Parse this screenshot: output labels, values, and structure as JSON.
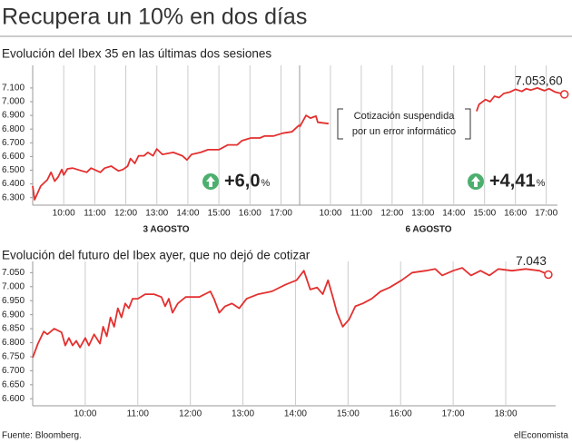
{
  "title": "Recupera un 10% en dos días",
  "source": "Fuente: Bloomberg.",
  "credit": "elEconomista",
  "chart_data": [
    {
      "type": "line",
      "title": "Evolución del Ibex 35 en las últimas dos sesiones",
      "xlabel": "3 AGOSTO",
      "change": "+6,0",
      "change_unit": "%",
      "x": [
        9.0,
        9.06,
        9.26,
        9.47,
        9.59,
        9.71,
        9.82,
        9.94,
        10.0,
        10.12,
        10.29,
        10.59,
        10.74,
        10.88,
        11.18,
        11.32,
        11.53,
        11.76,
        11.91,
        12.06,
        12.15,
        12.29,
        12.41,
        12.59,
        12.71,
        12.88,
        13.0,
        13.18,
        13.53,
        13.82,
        13.97,
        14.12,
        14.41,
        14.65,
        15.0,
        15.29,
        15.59,
        15.74,
        16.03,
        16.32,
        16.47,
        16.76,
        17.06,
        17.35,
        17.59
      ],
      "series": [
        {
          "color": "#e3302f",
          "values": [
            6385,
            6285,
            6385,
            6430,
            6485,
            6420,
            6450,
            6505,
            6465,
            6510,
            6515,
            6495,
            6485,
            6515,
            6485,
            6515,
            6530,
            6495,
            6505,
            6530,
            6585,
            6550,
            6605,
            6605,
            6630,
            6605,
            6655,
            6615,
            6630,
            6605,
            6575,
            6615,
            6630,
            6650,
            6650,
            6685,
            6685,
            6715,
            6735,
            6735,
            6750,
            6750,
            6770,
            6780,
            6830
          ]
        }
      ],
      "xlim": [
        9,
        17.6
      ],
      "ylim": [
        6245,
        7265
      ],
      "xticks": [
        {
          "value": 10,
          "label": "10:00"
        },
        {
          "value": 11,
          "label": "11:00"
        },
        {
          "value": 12,
          "label": "12:00"
        },
        {
          "value": 13,
          "label": "13:00"
        },
        {
          "value": 14,
          "label": "14:00"
        },
        {
          "value": 15,
          "label": "15:00"
        },
        {
          "value": 16,
          "label": "16:00"
        },
        {
          "value": 17,
          "label": "17:00"
        }
      ],
      "yticks": [
        {
          "value": 6300,
          "label": "6.300"
        },
        {
          "value": 6400,
          "label": "6.400"
        },
        {
          "value": 6500,
          "label": "6.500"
        },
        {
          "value": 6600,
          "label": "6.600"
        },
        {
          "value": 6700,
          "label": "6.700"
        },
        {
          "value": 6800,
          "label": "6.800"
        },
        {
          "value": 6900,
          "label": "6.900"
        },
        {
          "value": 7000,
          "label": "7.000"
        },
        {
          "value": 7100,
          "label": "7.100"
        }
      ],
      "grid": true
    },
    {
      "type": "line",
      "xlabel": "6 AGOSTO",
      "change": "+4,41",
      "change_unit": "%",
      "note": [
        "Cotización suspendida",
        "por un error informático"
      ],
      "x": [
        9.0,
        9.21,
        9.35,
        9.53,
        9.59,
        9.94,
        12.0,
        14.74,
        14.82,
        15.03,
        15.18,
        15.32,
        15.47,
        15.62,
        15.82,
        16.0,
        16.21,
        16.35,
        16.5,
        16.71,
        16.94,
        17.09,
        17.29,
        17.59
      ],
      "series": [
        {
          "color": "#e3302f",
          "values": [
            6815,
            6900,
            6880,
            6895,
            6850,
            6840,
            null,
            6930,
            6980,
            7015,
            7000,
            7040,
            7030,
            7060,
            7070,
            7090,
            7075,
            7095,
            7085,
            7100,
            7080,
            7095,
            7070,
            7053.6
          ],
          "value_labels": [
            null,
            null,
            null,
            null,
            null,
            null,
            null,
            null,
            null,
            null,
            null,
            null,
            null,
            null,
            null,
            null,
            null,
            null,
            null,
            null,
            null,
            null,
            null,
            "7.053,60"
          ]
        }
      ],
      "xlim": [
        9,
        17.6
      ],
      "ylim": [
        6245,
        7265
      ],
      "xticks": [
        {
          "value": 10,
          "label": "10:00"
        },
        {
          "value": 11,
          "label": "11:00"
        },
        {
          "value": 12,
          "label": "12:00"
        },
        {
          "value": 13,
          "label": "13:00"
        },
        {
          "value": 14,
          "label": "14:00"
        },
        {
          "value": 15,
          "label": "15:00"
        },
        {
          "value": 16,
          "label": "16:00"
        },
        {
          "value": 17,
          "label": "17:00"
        }
      ],
      "grid": true
    },
    {
      "type": "line",
      "title": "Evolución del futuro del Ibex ayer, que no dejó de cotizar",
      "x": [
        9.0,
        9.1,
        9.21,
        9.28,
        9.41,
        9.55,
        9.62,
        9.69,
        9.76,
        9.83,
        9.9,
        10.0,
        10.07,
        10.17,
        10.28,
        10.34,
        10.41,
        10.48,
        10.55,
        10.62,
        10.69,
        10.76,
        10.83,
        10.9,
        11.0,
        11.14,
        11.31,
        11.45,
        11.52,
        11.59,
        11.66,
        11.76,
        11.91,
        12.17,
        12.38,
        12.45,
        12.55,
        12.66,
        12.79,
        12.93,
        13.07,
        13.29,
        13.55,
        13.81,
        14.02,
        14.16,
        14.28,
        14.41,
        14.52,
        14.62,
        14.72,
        14.79,
        14.9,
        15.02,
        15.14,
        15.28,
        15.45,
        15.62,
        15.79,
        16.02,
        16.22,
        16.48,
        16.66,
        16.79,
        17.0,
        17.17,
        17.34,
        17.52,
        17.69,
        17.86,
        18.12,
        18.38,
        18.64,
        18.81
      ],
      "series": [
        {
          "color": "#e3302f",
          "values": [
            6747,
            6797,
            6840,
            6830,
            6850,
            6837,
            6790,
            6817,
            6790,
            6807,
            6783,
            6817,
            6790,
            6830,
            6797,
            6857,
            6823,
            6890,
            6857,
            6923,
            6890,
            6940,
            6923,
            6957,
            6957,
            6973,
            6973,
            6963,
            6930,
            6957,
            6907,
            6940,
            6963,
            6963,
            6983,
            6957,
            6907,
            6930,
            6940,
            6923,
            6957,
            6973,
            6983,
            7007,
            7023,
            7057,
            6990,
            6997,
            6973,
            7023,
            6957,
            6907,
            6857,
            6883,
            6930,
            6940,
            6957,
            6983,
            6997,
            7023,
            7050,
            7057,
            7063,
            7040,
            7057,
            7067,
            7040,
            7057,
            7040,
            7063,
            7057,
            7063,
            7057,
            7043
          ],
          "value_labels": [
            null,
            null,
            null,
            null,
            null,
            null,
            null,
            null,
            null,
            null,
            null,
            null,
            null,
            null,
            null,
            null,
            null,
            null,
            null,
            null,
            null,
            null,
            null,
            null,
            null,
            null,
            null,
            null,
            null,
            null,
            null,
            null,
            null,
            null,
            null,
            null,
            null,
            null,
            null,
            null,
            null,
            null,
            null,
            null,
            null,
            null,
            null,
            null,
            null,
            null,
            null,
            null,
            null,
            null,
            null,
            null,
            null,
            null,
            null,
            null,
            null,
            null,
            null,
            null,
            null,
            null,
            null,
            null,
            null,
            null,
            null,
            null,
            null,
            "7.043"
          ]
        }
      ],
      "xlim": [
        9,
        18.95
      ],
      "ylim": [
        6575,
        7090
      ],
      "xticks": [
        {
          "value": 10,
          "label": "10:00"
        },
        {
          "value": 11,
          "label": "11:00"
        },
        {
          "value": 12,
          "label": "12:00"
        },
        {
          "value": 13,
          "label": "13:00"
        },
        {
          "value": 14,
          "label": "14:00"
        },
        {
          "value": 15,
          "label": "15:00"
        },
        {
          "value": 16,
          "label": "16:00"
        },
        {
          "value": 17,
          "label": "17:00"
        },
        {
          "value": 18,
          "label": "18:00"
        }
      ],
      "yticks": [
        {
          "value": 6600,
          "label": "6.600"
        },
        {
          "value": 6650,
          "label": "6.650"
        },
        {
          "value": 6700,
          "label": "6.700"
        },
        {
          "value": 6750,
          "label": "6.750"
        },
        {
          "value": 6800,
          "label": "6.800"
        },
        {
          "value": 6850,
          "label": "6.850"
        },
        {
          "value": 6900,
          "label": "6.900"
        },
        {
          "value": 6950,
          "label": "6.950"
        },
        {
          "value": 7000,
          "label": "7.000"
        },
        {
          "value": 7050,
          "label": "7.050"
        }
      ],
      "grid": true
    }
  ]
}
